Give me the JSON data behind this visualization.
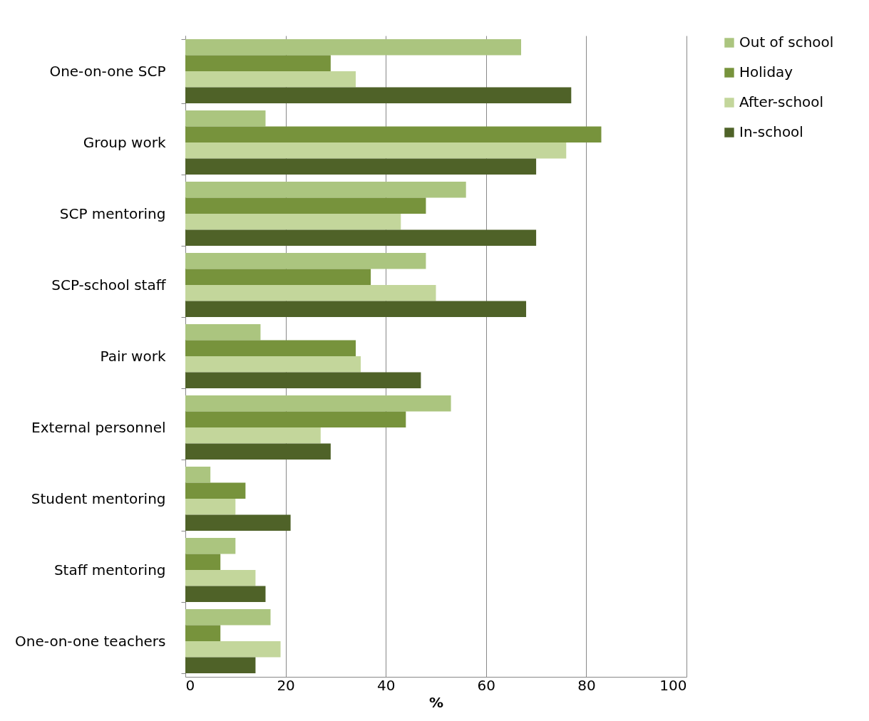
{
  "chart_data": {
    "type": "bar",
    "orientation": "horizontal",
    "xlabel": "%",
    "categories": [
      "One-on-one SCP",
      "Group work",
      "SCP mentoring",
      "SCP-school staff",
      "Pair work",
      "External personnel",
      "Student mentoring",
      "Staff mentoring",
      "One-on-one teachers"
    ],
    "series": [
      {
        "name": "Out of school",
        "color": "#abc57f",
        "values": [
          67,
          16,
          56,
          48,
          15,
          53,
          5,
          10,
          17
        ]
      },
      {
        "name": "Holiday",
        "color": "#77933c",
        "values": [
          29,
          83,
          48,
          37,
          34,
          44,
          12,
          7,
          7
        ]
      },
      {
        "name": "After-school",
        "color": "#c3d69b",
        "values": [
          34,
          76,
          43,
          50,
          35,
          27,
          10,
          14,
          19
        ]
      },
      {
        "name": "In-school",
        "color": "#4f6228",
        "values": [
          77,
          70,
          70,
          68,
          47,
          29,
          21,
          16,
          14
        ]
      }
    ],
    "xlim": [
      0,
      100
    ],
    "xticks": [
      0,
      20,
      40,
      60,
      80,
      100
    ],
    "grid": "x",
    "legend": "right"
  }
}
